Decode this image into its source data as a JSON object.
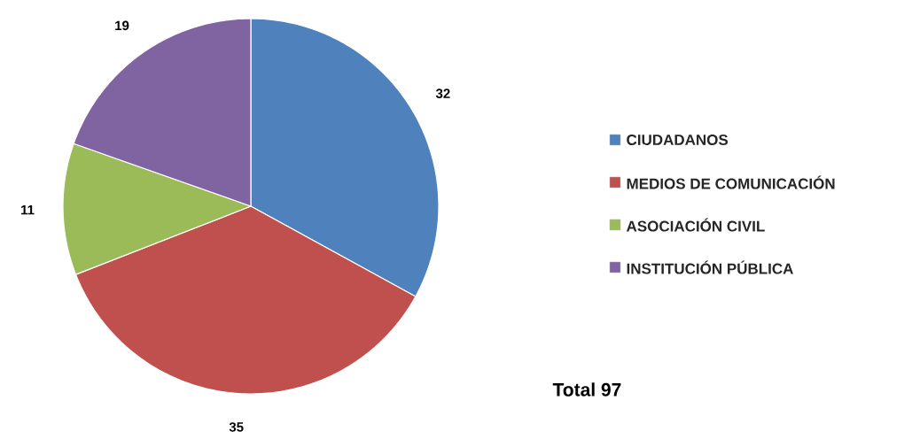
{
  "chart_data": {
    "type": "pie",
    "categories": [
      "CIUDADANOS",
      "MEDIOS DE COMUNICACIÓN",
      "ASOCIACIÓN CIVIL",
      "INSTITUCIÓN PÚBLICA"
    ],
    "values": [
      32,
      35,
      11,
      19
    ],
    "colors": [
      "#4f81bd",
      "#c0504d",
      "#9bbb59",
      "#8064a2"
    ],
    "data_labels": true,
    "legend": "right",
    "annotations": [
      "Total 97"
    ]
  }
}
